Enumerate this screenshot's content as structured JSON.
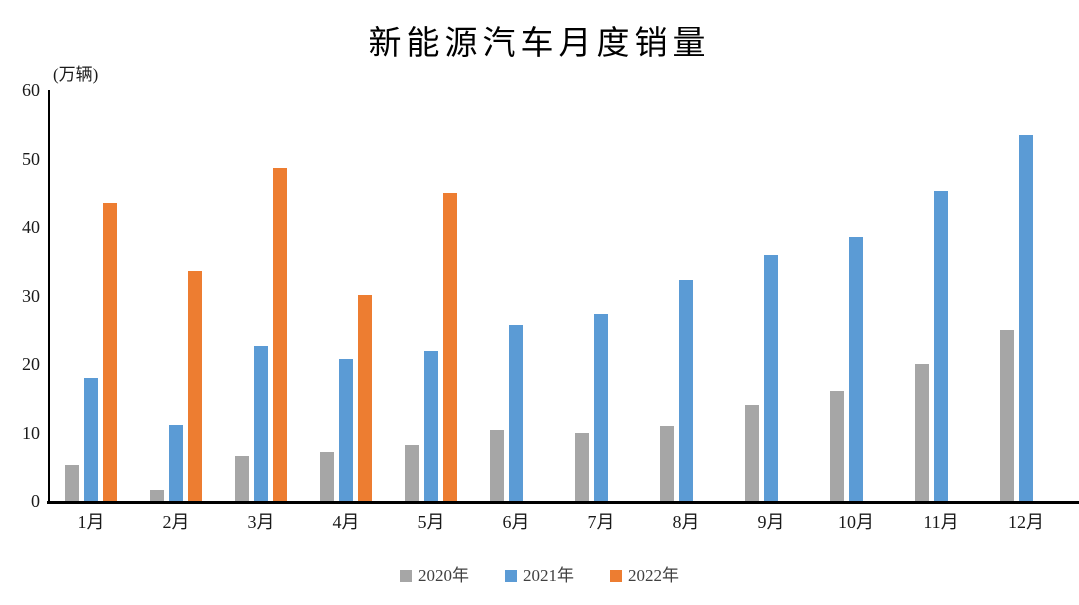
{
  "title": "新能源汽车月度销量",
  "unit_label": "(万辆)",
  "chart_data": {
    "type": "bar",
    "title": "新能源汽车月度销量",
    "ylabel": "(万辆)",
    "xlabel": "",
    "categories": [
      "1月",
      "2月",
      "3月",
      "4月",
      "5月",
      "6月",
      "7月",
      "8月",
      "9月",
      "10月",
      "11月",
      "12月"
    ],
    "series": [
      {
        "name": "2020年",
        "color": "#A6A6A6",
        "values": [
          5.3,
          1.6,
          6.5,
          7.2,
          8.2,
          10.3,
          9.9,
          10.9,
          14.0,
          16.1,
          20.0,
          25.0
        ]
      },
      {
        "name": "2021年",
        "color": "#5B9BD5",
        "values": [
          18.0,
          11.1,
          22.6,
          20.7,
          21.9,
          25.7,
          27.3,
          32.2,
          35.9,
          38.5,
          45.3,
          53.5
        ]
      },
      {
        "name": "2022年",
        "color": "#ED7D31",
        "values": [
          43.5,
          33.6,
          48.6,
          30.1,
          45.0,
          null,
          null,
          null,
          null,
          null,
          null,
          null
        ]
      }
    ],
    "ylim": [
      0,
      60
    ],
    "yticks": [
      0,
      10,
      20,
      30,
      40,
      50,
      60
    ],
    "grid": false,
    "legend_position": "bottom"
  }
}
